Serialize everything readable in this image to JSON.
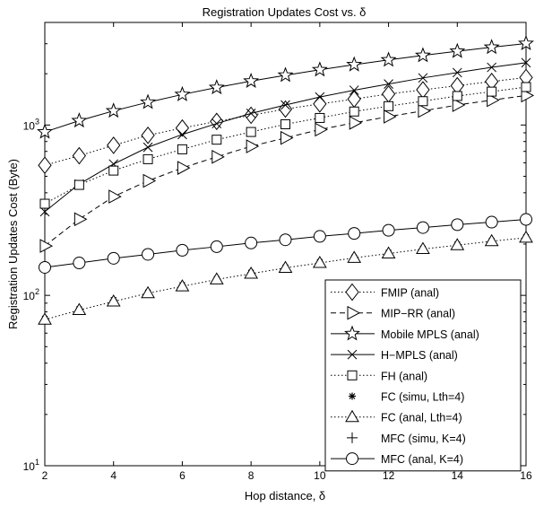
{
  "chart_data": {
    "type": "line",
    "title": "Registration Updates Cost vs. δ",
    "xlabel": "Hop distance, δ",
    "ylabel": "Registration Updates Cost (Byte)",
    "xlim": [
      2,
      16
    ],
    "ylim": [
      10,
      4000
    ],
    "yscale": "log",
    "grid": false,
    "legend_position": "bottom-right",
    "x_ticks": [
      2,
      4,
      6,
      8,
      10,
      12,
      14,
      16
    ],
    "y_ticks": [
      {
        "value": 10,
        "base": "10",
        "exp": "1"
      },
      {
        "value": 100,
        "base": "10",
        "exp": "2"
      },
      {
        "value": 1000,
        "base": "10",
        "exp": "3"
      }
    ],
    "x": [
      2,
      3,
      4,
      5,
      6,
      7,
      8,
      9,
      10,
      11,
      12,
      13,
      14,
      15,
      16
    ],
    "series": [
      {
        "name": "FMIP (anal)",
        "line": "dotted",
        "marker": "diamond",
        "values": [
          580,
          660,
          760,
          870,
          960,
          1050,
          1140,
          1240,
          1330,
          1420,
          1520,
          1610,
          1700,
          1800,
          1900
        ]
      },
      {
        "name": "MIP−RR (anal)",
        "line": "dashed",
        "marker": "triangle-right",
        "values": [
          195,
          280,
          380,
          470,
          560,
          650,
          750,
          840,
          940,
          1030,
          1120,
          1210,
          1310,
          1400,
          1490
        ]
      },
      {
        "name": "Mobile MPLS (anal)",
        "line": "solid",
        "marker": "star",
        "values": [
          910,
          1060,
          1210,
          1360,
          1510,
          1660,
          1810,
          1960,
          2110,
          2260,
          2410,
          2560,
          2710,
          2860,
          3010
        ]
      },
      {
        "name": "H−MPLS (anal)",
        "line": "solid",
        "marker": "x",
        "values": [
          310,
          450,
          590,
          740,
          880,
          1020,
          1170,
          1310,
          1460,
          1600,
          1740,
          1890,
          2030,
          2180,
          2320
        ]
      },
      {
        "name": "FH (anal)",
        "line": "dotted",
        "marker": "square",
        "values": [
          345,
          445,
          540,
          630,
          720,
          820,
          910,
          1010,
          1100,
          1200,
          1290,
          1380,
          1480,
          1570,
          1670
        ]
      },
      {
        "name": "FC (simu, Lth=4)",
        "line": "none",
        "marker": "asterisk",
        "values": [
          73,
          83,
          94,
          104,
          115,
          125,
          136,
          146,
          157,
          167,
          178,
          188,
          199,
          209,
          220
        ]
      },
      {
        "name": "FC (anal, Lth=4)",
        "line": "dotted",
        "marker": "triangle-up",
        "values": [
          72,
          82,
          92,
          103,
          113,
          124,
          134,
          145,
          155,
          166,
          176,
          187,
          197,
          208,
          218
        ]
      },
      {
        "name": "MFC (simu, K=4)",
        "line": "none",
        "marker": "plus",
        "values": [
          147,
          156,
          166,
          176,
          185,
          195,
          204,
          214,
          224,
          233,
          243,
          252,
          262,
          272,
          281
        ]
      },
      {
        "name": "MFC (anal, K=4)",
        "line": "solid",
        "marker": "circle",
        "values": [
          146,
          155,
          165,
          174,
          184,
          193,
          203,
          212,
          222,
          231,
          241,
          250,
          260,
          269,
          279
        ]
      }
    ]
  }
}
